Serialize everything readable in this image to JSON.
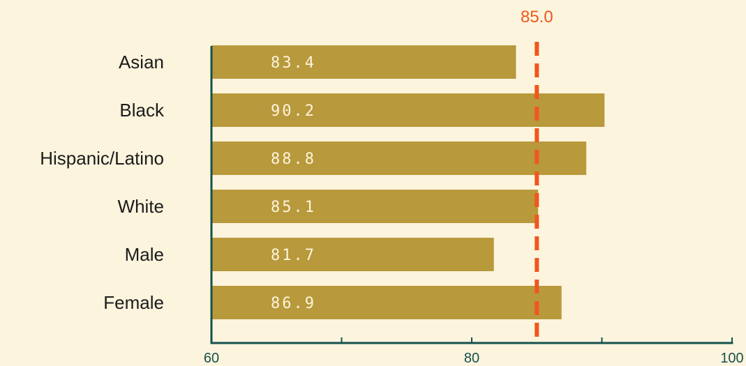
{
  "chart_data": {
    "type": "bar",
    "orientation": "horizontal",
    "categories": [
      "Asian",
      "Black",
      "Hispanic/Latino",
      "White",
      "Male",
      "Female"
    ],
    "values": [
      83.4,
      90.2,
      88.8,
      85.1,
      81.7,
      86.9
    ],
    "value_labels": [
      "83.4",
      "90.2",
      "88.8",
      "85.1",
      "81.7",
      "86.9"
    ],
    "xlim": [
      60,
      100
    ],
    "x_ticks": [
      60,
      70,
      80,
      90,
      100
    ],
    "x_tick_labels": [
      "60",
      "",
      "80",
      "",
      "100"
    ],
    "reference_line": {
      "value": 85.0,
      "label": "85.0",
      "style": "dashed"
    },
    "title": "",
    "xlabel": "",
    "ylabel": "",
    "grid": false,
    "legend": "none"
  },
  "colors": {
    "background": "#fdf4dd",
    "bar": "#b8993b",
    "value_text": "#fdf4dd",
    "axis": "#15514d",
    "reference_line": "#f0571e",
    "category_text": "#1b1b1b"
  }
}
